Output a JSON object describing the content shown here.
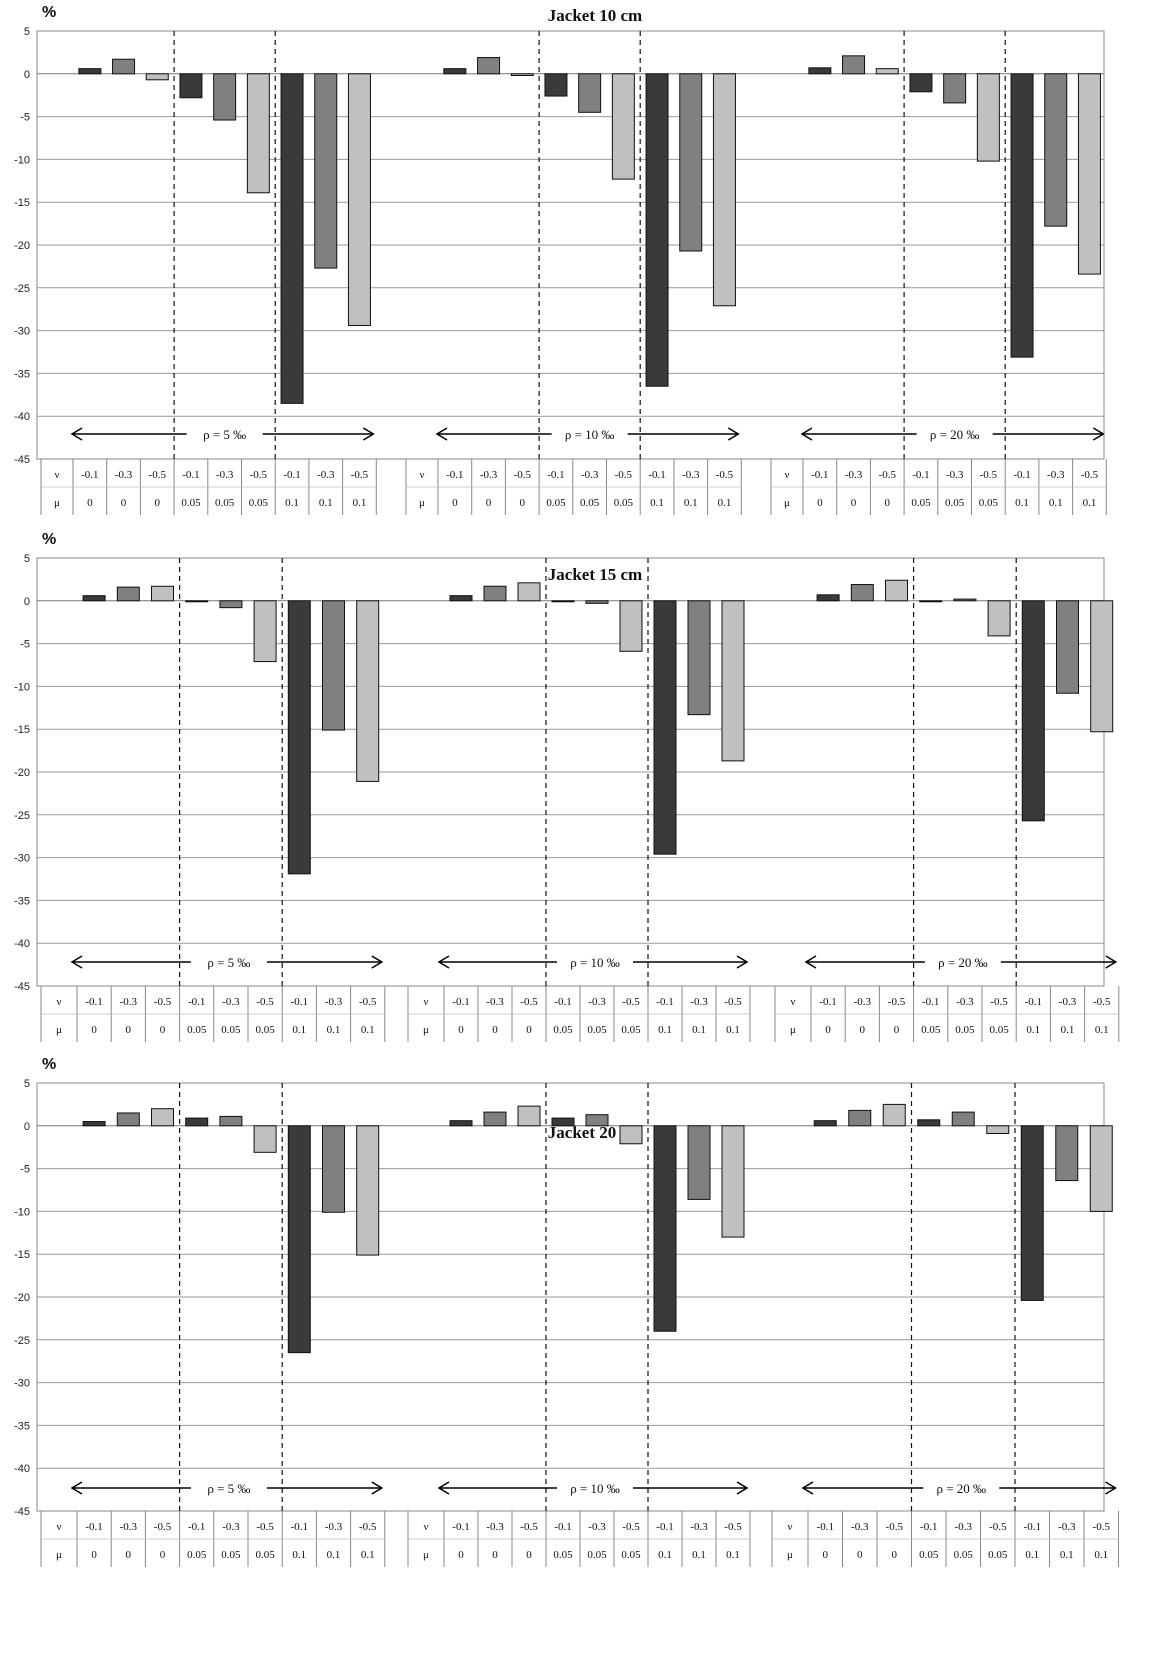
{
  "chart_data": [
    {
      "type": "bar",
      "title": "Jacket 10 cm",
      "ylabel": "%",
      "ylim": [
        -45,
        5
      ],
      "yticks": [
        5,
        0,
        -5,
        -10,
        -15,
        -20,
        -25,
        -30,
        -35,
        -40,
        -45
      ],
      "grid": true,
      "groups": [
        {
          "label": "ρ = 5 ‰",
          "nu": [
            "-0.1",
            "-0.3",
            "-0.5",
            "-0.1",
            "-0.3",
            "-0.5",
            "-0.1",
            "-0.3",
            "-0.5"
          ],
          "mu": [
            "0",
            "0",
            "0",
            "0.05",
            "0.05",
            "0.05",
            "0.1",
            "0.1",
            "0.1"
          ],
          "values": [
            0.6,
            1.7,
            -0.7,
            -2.8,
            -5.4,
            -13.9,
            -38.5,
            -22.7,
            -29.4
          ]
        },
        {
          "label": "ρ = 10 ‰",
          "nu": [
            "-0.1",
            "-0.3",
            "-0.5",
            "-0.1",
            "-0.3",
            "-0.5",
            "-0.1",
            "-0.3",
            "-0.5"
          ],
          "mu": [
            "0",
            "0",
            "0",
            "0.05",
            "0.05",
            "0.05",
            "0.1",
            "0.1",
            "0.1"
          ],
          "values": [
            0.6,
            1.9,
            -0.2,
            -2.6,
            -4.5,
            -12.3,
            -36.5,
            -20.7,
            -27.1
          ]
        },
        {
          "label": "ρ = 20 ‰",
          "nu": [
            "-0.1",
            "-0.3",
            "-0.5",
            "-0.1",
            "-0.3",
            "-0.5",
            "-0.1",
            "-0.3",
            "-0.5"
          ],
          "mu": [
            "0",
            "0",
            "0",
            "0.05",
            "0.05",
            "0.05",
            "0.1",
            "0.1",
            "0.1"
          ],
          "values": [
            0.7,
            2.1,
            0.6,
            -2.1,
            -3.4,
            -10.2,
            -33.1,
            -17.8,
            -23.4
          ]
        }
      ],
      "row_labels": [
        "ν",
        "μ"
      ]
    },
    {
      "type": "bar",
      "title": "Jacket 15 cm",
      "ylabel": "%",
      "ylim": [
        -45,
        5
      ],
      "yticks": [
        5,
        0,
        -5,
        -10,
        -15,
        -20,
        -25,
        -30,
        -35,
        -40,
        -45
      ],
      "grid": true,
      "groups": [
        {
          "label": "ρ = 5 ‰",
          "nu": [
            "-0.1",
            "-0.3",
            "-0.5",
            "-0.1",
            "-0.3",
            "-0.5",
            "-0.1",
            "-0.3",
            "-0.5"
          ],
          "mu": [
            "0",
            "0",
            "0",
            "0.05",
            "0.05",
            "0.05",
            "0.1",
            "0.1",
            "0.1"
          ],
          "values": [
            0.6,
            1.6,
            1.7,
            0.0,
            -0.8,
            -7.1,
            -31.9,
            -15.1,
            -21.1
          ]
        },
        {
          "label": "ρ = 10 ‰",
          "nu": [
            "-0.1",
            "-0.3",
            "-0.5",
            "-0.1",
            "-0.3",
            "-0.5",
            "-0.1",
            "-0.3",
            "-0.5"
          ],
          "mu": [
            "0",
            "0",
            "0",
            "0.05",
            "0.05",
            "0.05",
            "0.1",
            "0.1",
            "0.1"
          ],
          "values": [
            0.6,
            1.7,
            2.1,
            0.0,
            -0.3,
            -5.9,
            -29.6,
            -13.3,
            -18.7
          ]
        },
        {
          "label": "ρ = 20 ‰",
          "nu": [
            "-0.1",
            "-0.3",
            "-0.5",
            "-0.1",
            "-0.3",
            "-0.5",
            "-0.1",
            "-0.3",
            "-0.5"
          ],
          "mu": [
            "0",
            "0",
            "0",
            "0.05",
            "0.05",
            "0.05",
            "0.1",
            "0.1",
            "0.1"
          ],
          "values": [
            0.7,
            1.9,
            2.4,
            0.0,
            0.2,
            -4.1,
            -25.7,
            -10.8,
            -15.3
          ]
        }
      ],
      "row_labels": [
        "ν",
        "μ"
      ]
    },
    {
      "type": "bar",
      "title": "Jacket 20 cm",
      "ylabel": "%",
      "ylim": [
        -45,
        5
      ],
      "yticks": [
        5,
        0,
        -5,
        -10,
        -15,
        -20,
        -25,
        -30,
        -35,
        -40,
        -45
      ],
      "grid": true,
      "groups": [
        {
          "label": "ρ = 5 ‰",
          "nu": [
            "-0.1",
            "-0.3",
            "-0.5",
            "-0.1",
            "-0.3",
            "-0.5",
            "-0.1",
            "-0.3",
            "-0.5"
          ],
          "mu": [
            "0",
            "0",
            "0",
            "0.05",
            "0.05",
            "0.05",
            "0.1",
            "0.1",
            "0.1"
          ],
          "values": [
            0.5,
            1.5,
            2.0,
            0.9,
            1.1,
            -3.1,
            -26.5,
            -10.1,
            -15.1
          ]
        },
        {
          "label": "ρ = 10 ‰",
          "nu": [
            "-0.1",
            "-0.3",
            "-0.5",
            "-0.1",
            "-0.3",
            "-0.5",
            "-0.1",
            "-0.3",
            "-0.5"
          ],
          "mu": [
            "0",
            "0",
            "0",
            "0.05",
            "0.05",
            "0.05",
            "0.1",
            "0.1",
            "0.1"
          ],
          "values": [
            0.6,
            1.6,
            2.3,
            0.9,
            1.3,
            -2.1,
            -24.0,
            -8.6,
            -13.0
          ]
        },
        {
          "label": "ρ = 20 ‰",
          "nu": [
            "-0.1",
            "-0.3",
            "-0.5",
            "-0.1",
            "-0.3",
            "-0.5",
            "-0.1",
            "-0.3",
            "-0.5"
          ],
          "mu": [
            "0",
            "0",
            "0",
            "0.05",
            "0.05",
            "0.05",
            "0.1",
            "0.1",
            "0.1"
          ],
          "values": [
            0.6,
            1.8,
            2.5,
            0.7,
            1.6,
            -0.9,
            -20.4,
            -6.4,
            -10.0
          ]
        }
      ],
      "row_labels": [
        "ν",
        "μ"
      ]
    }
  ],
  "colors": {
    "nu_-0.1": "#3a3a3a",
    "nu_-0.3": "#808080",
    "nu_-0.5": "#c0c0c0",
    "grid": "#9a9a9a"
  }
}
